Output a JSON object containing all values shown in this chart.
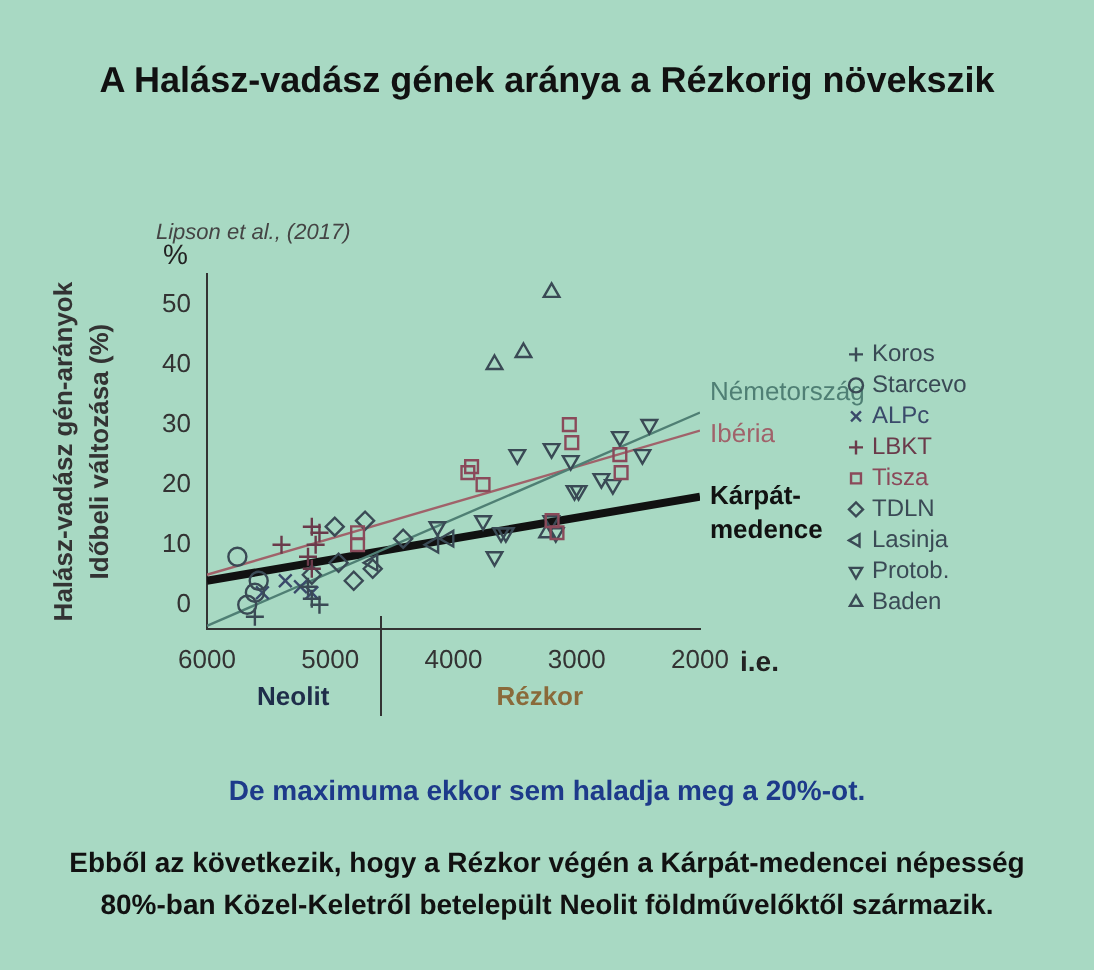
{
  "chart_data": {
    "type": "scatter",
    "title": "A Halász-vadász gének aránya a Rézkorig növekszik",
    "subtitle": "Lipson et al., (2017)",
    "ylabel": "Halász-vadász gén-arányok\nIdőbeli változása (%)",
    "xlim": [
      6000,
      2000
    ],
    "xticks": [
      6000,
      5000,
      4000,
      3000,
      2000
    ],
    "ylim": [
      -4,
      55
    ],
    "yticks": [
      0,
      10,
      20,
      30,
      40,
      50
    ],
    "grid": false,
    "legend": "right",
    "annotations": [
      "%",
      "i.e.",
      "Neolit",
      "Rézkor",
      "De maximuma ekkor sem haladja meg a 20%-ot.",
      "Ebből az következik, hogy a Rézkor végén a Kárpát-medencei népesség 80%-ban Közel-Keletről betelepült Neolit földművelőktől származik."
    ],
    "series": [
      {
        "name": "Koros",
        "marker": "cross",
        "color": "#3a4a55",
        "x": [
          5611,
          5149,
          5087,
          5180
        ],
        "values": [
          -2,
          1,
          0,
          3
        ]
      },
      {
        "name": "Starcevo",
        "marker": "circle",
        "color": "#3a4a55",
        "x": [
          5753,
          5611,
          5673,
          5580
        ],
        "values": [
          8,
          2,
          0,
          4
        ]
      },
      {
        "name": "ALPc",
        "marker": "x",
        "color": "#3a4a6a",
        "x": [
          5550,
          5364,
          5241,
          5149
        ],
        "values": [
          2,
          4,
          3,
          2
        ]
      },
      {
        "name": "LBKT",
        "marker": "cross",
        "color": "#6a3a4a",
        "x": [
          5395,
          5149,
          5087,
          5180,
          5149,
          5118
        ],
        "values": [
          10,
          13,
          12,
          8,
          6,
          10
        ]
      },
      {
        "name": "Tisza",
        "marker": "square",
        "color": "#8a4a5a",
        "x": [
          3853,
          3760,
          3883,
          4778,
          4778,
          3060,
          3040,
          2650,
          2640,
          3200,
          3160
        ],
        "values": [
          23,
          20,
          22,
          12,
          10,
          30,
          27,
          25,
          22,
          14,
          12
        ]
      },
      {
        "name": "TDLN",
        "marker": "diamond",
        "color": "#3a4a55",
        "x": [
          4717,
          4809,
          4932,
          4655,
          4408,
          5149,
          4963
        ],
        "values": [
          14,
          4,
          7,
          6,
          11,
          5,
          13
        ]
      },
      {
        "name": "Lasinja",
        "marker": "triangle-left",
        "color": "#3a4a55",
        "x": [
          4161,
          4038,
          4655
        ],
        "values": [
          10,
          11,
          7
        ]
      },
      {
        "name": "Protob.",
        "marker": "triangle-down",
        "color": "#3a4a55",
        "x": [
          3760,
          3667,
          3575,
          3482,
          3204,
          3049,
          3018,
          4130,
          2985,
          2800,
          2650,
          2411,
          2467,
          2707,
          3614,
          3170,
          3206
        ],
        "values": [
          14,
          8,
          12,
          25,
          26,
          24,
          19,
          13,
          19,
          21,
          28,
          30,
          25,
          20,
          12,
          12,
          14
        ]
      },
      {
        "name": "Baden",
        "marker": "triangle",
        "color": "#3a4a55",
        "x": [
          3204,
          3667,
          3432,
          3240
        ],
        "values": [
          52,
          40,
          42,
          12
        ]
      },
      {
        "name": "Németország",
        "type": "line",
        "color": "#4f7f74",
        "x": [
          6000,
          2000
        ],
        "values": [
          -3.5,
          32
        ]
      },
      {
        "name": "Ibéria",
        "type": "line",
        "color": "#a0626a",
        "x": [
          6000,
          2000
        ],
        "values": [
          5,
          29
        ]
      },
      {
        "name": "Kárpát-medence",
        "type": "line",
        "color": "#111111",
        "x": [
          6000,
          2000
        ],
        "values": [
          4,
          18
        ]
      }
    ]
  }
}
